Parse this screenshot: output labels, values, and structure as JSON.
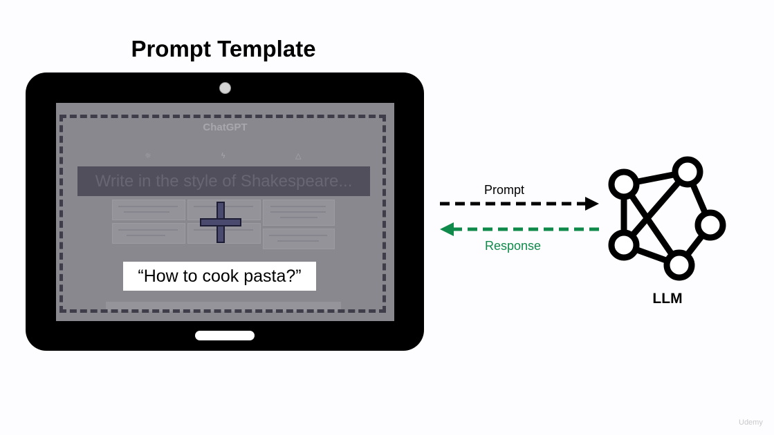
{
  "slide": {
    "title": "Prompt Template",
    "watermark": "Udemy"
  },
  "tablet": {
    "screen": {
      "app_title": "ChatGPT",
      "instruction_text": "Write in the style of Shakespeare...",
      "plus_symbol": "+"
    },
    "question": "“How to cook pasta?”"
  },
  "arrows": {
    "prompt_label": "Prompt",
    "response_label": "Response",
    "prompt_color": "#000000",
    "response_color": "#0f8a4a"
  },
  "llm": {
    "label": "LLM",
    "icon": "neural-network-icon"
  }
}
